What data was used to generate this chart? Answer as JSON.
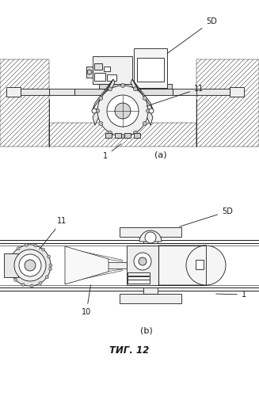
{
  "title": "ΤИГ. 12",
  "label_a": "(a)",
  "label_b": "(b)",
  "bg_color": "#ffffff",
  "line_color": "#1a1a1a",
  "fig_width": 3.27,
  "fig_height": 5.0,
  "dpi": 100,
  "labels": {
    "5D_a": "5D",
    "11_a": "11",
    "1_a": "1",
    "5D_b": "5D",
    "11_b": "11",
    "10_b": "10",
    "1_b": "1"
  }
}
